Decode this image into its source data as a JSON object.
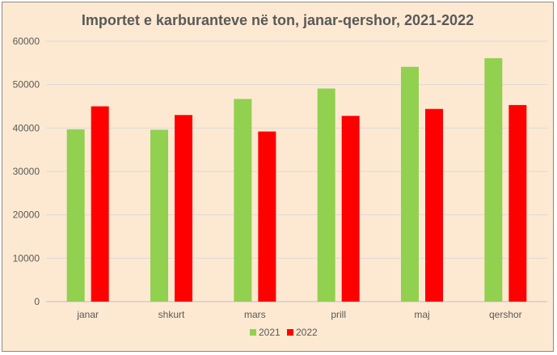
{
  "chart_data": {
    "type": "bar",
    "title": "Importet e karburanteve në ton, janar-qershor, 2021-2022",
    "xlabel": "",
    "ylabel": "",
    "categories": [
      "janar",
      "shkurt",
      "mars",
      "prill",
      "maj",
      "qershor"
    ],
    "series": [
      {
        "name": "2021",
        "color": "#92d050",
        "values": [
          39700,
          39600,
          46700,
          49100,
          54100,
          56100
        ]
      },
      {
        "name": "2022",
        "color": "#ff0000",
        "values": [
          45000,
          43000,
          39200,
          42800,
          44400,
          45300
        ]
      }
    ],
    "ylim": [
      0,
      60000
    ],
    "yticks": [
      "0",
      "10000",
      "20000",
      "30000",
      "40000",
      "50000",
      "60000"
    ],
    "grid": true,
    "legend_position": "bottom"
  },
  "colors": {
    "background": "#fde9d1",
    "gridline": "#d9d9d9",
    "text": "#595959"
  }
}
